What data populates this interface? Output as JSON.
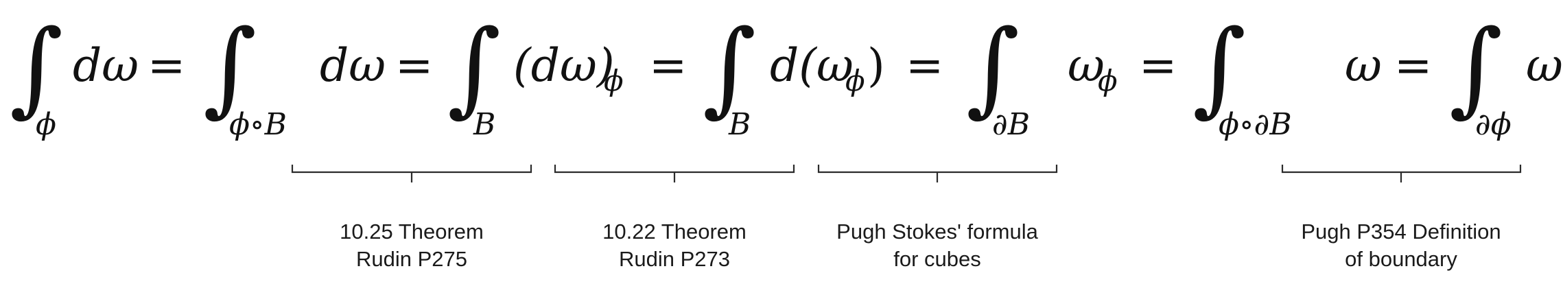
{
  "equation": {
    "terms": [
      {
        "integral_sub": "ϕ",
        "body": "dω"
      },
      {
        "integral_sub": "ϕ∘B",
        "body": "dω"
      },
      {
        "integral_sub": "B",
        "body": "(dω)",
        "body_sub": "ϕ"
      },
      {
        "integral_sub": "B",
        "body": "d(ω",
        "body_sub": "ϕ",
        "body_tail": ")"
      },
      {
        "integral_sub": "∂B",
        "body": "ω",
        "body_sub": "ϕ"
      },
      {
        "integral_sub": "ϕ∘∂B",
        "body": "ω"
      },
      {
        "integral_sub": "∂ϕ",
        "body": "ω"
      }
    ],
    "relation": "=",
    "integral_symbol": "∫"
  },
  "annotations": [
    {
      "line1": "10.25 Theorem",
      "line2": "Rudin P275"
    },
    {
      "line1": "10.22 Theorem",
      "line2": "Rudin P273"
    },
    {
      "line1": "Pugh Stokes' formula",
      "line2": "for cubes"
    },
    {
      "line1": "Pugh P354 Definition",
      "line2": "of boundary"
    }
  ]
}
